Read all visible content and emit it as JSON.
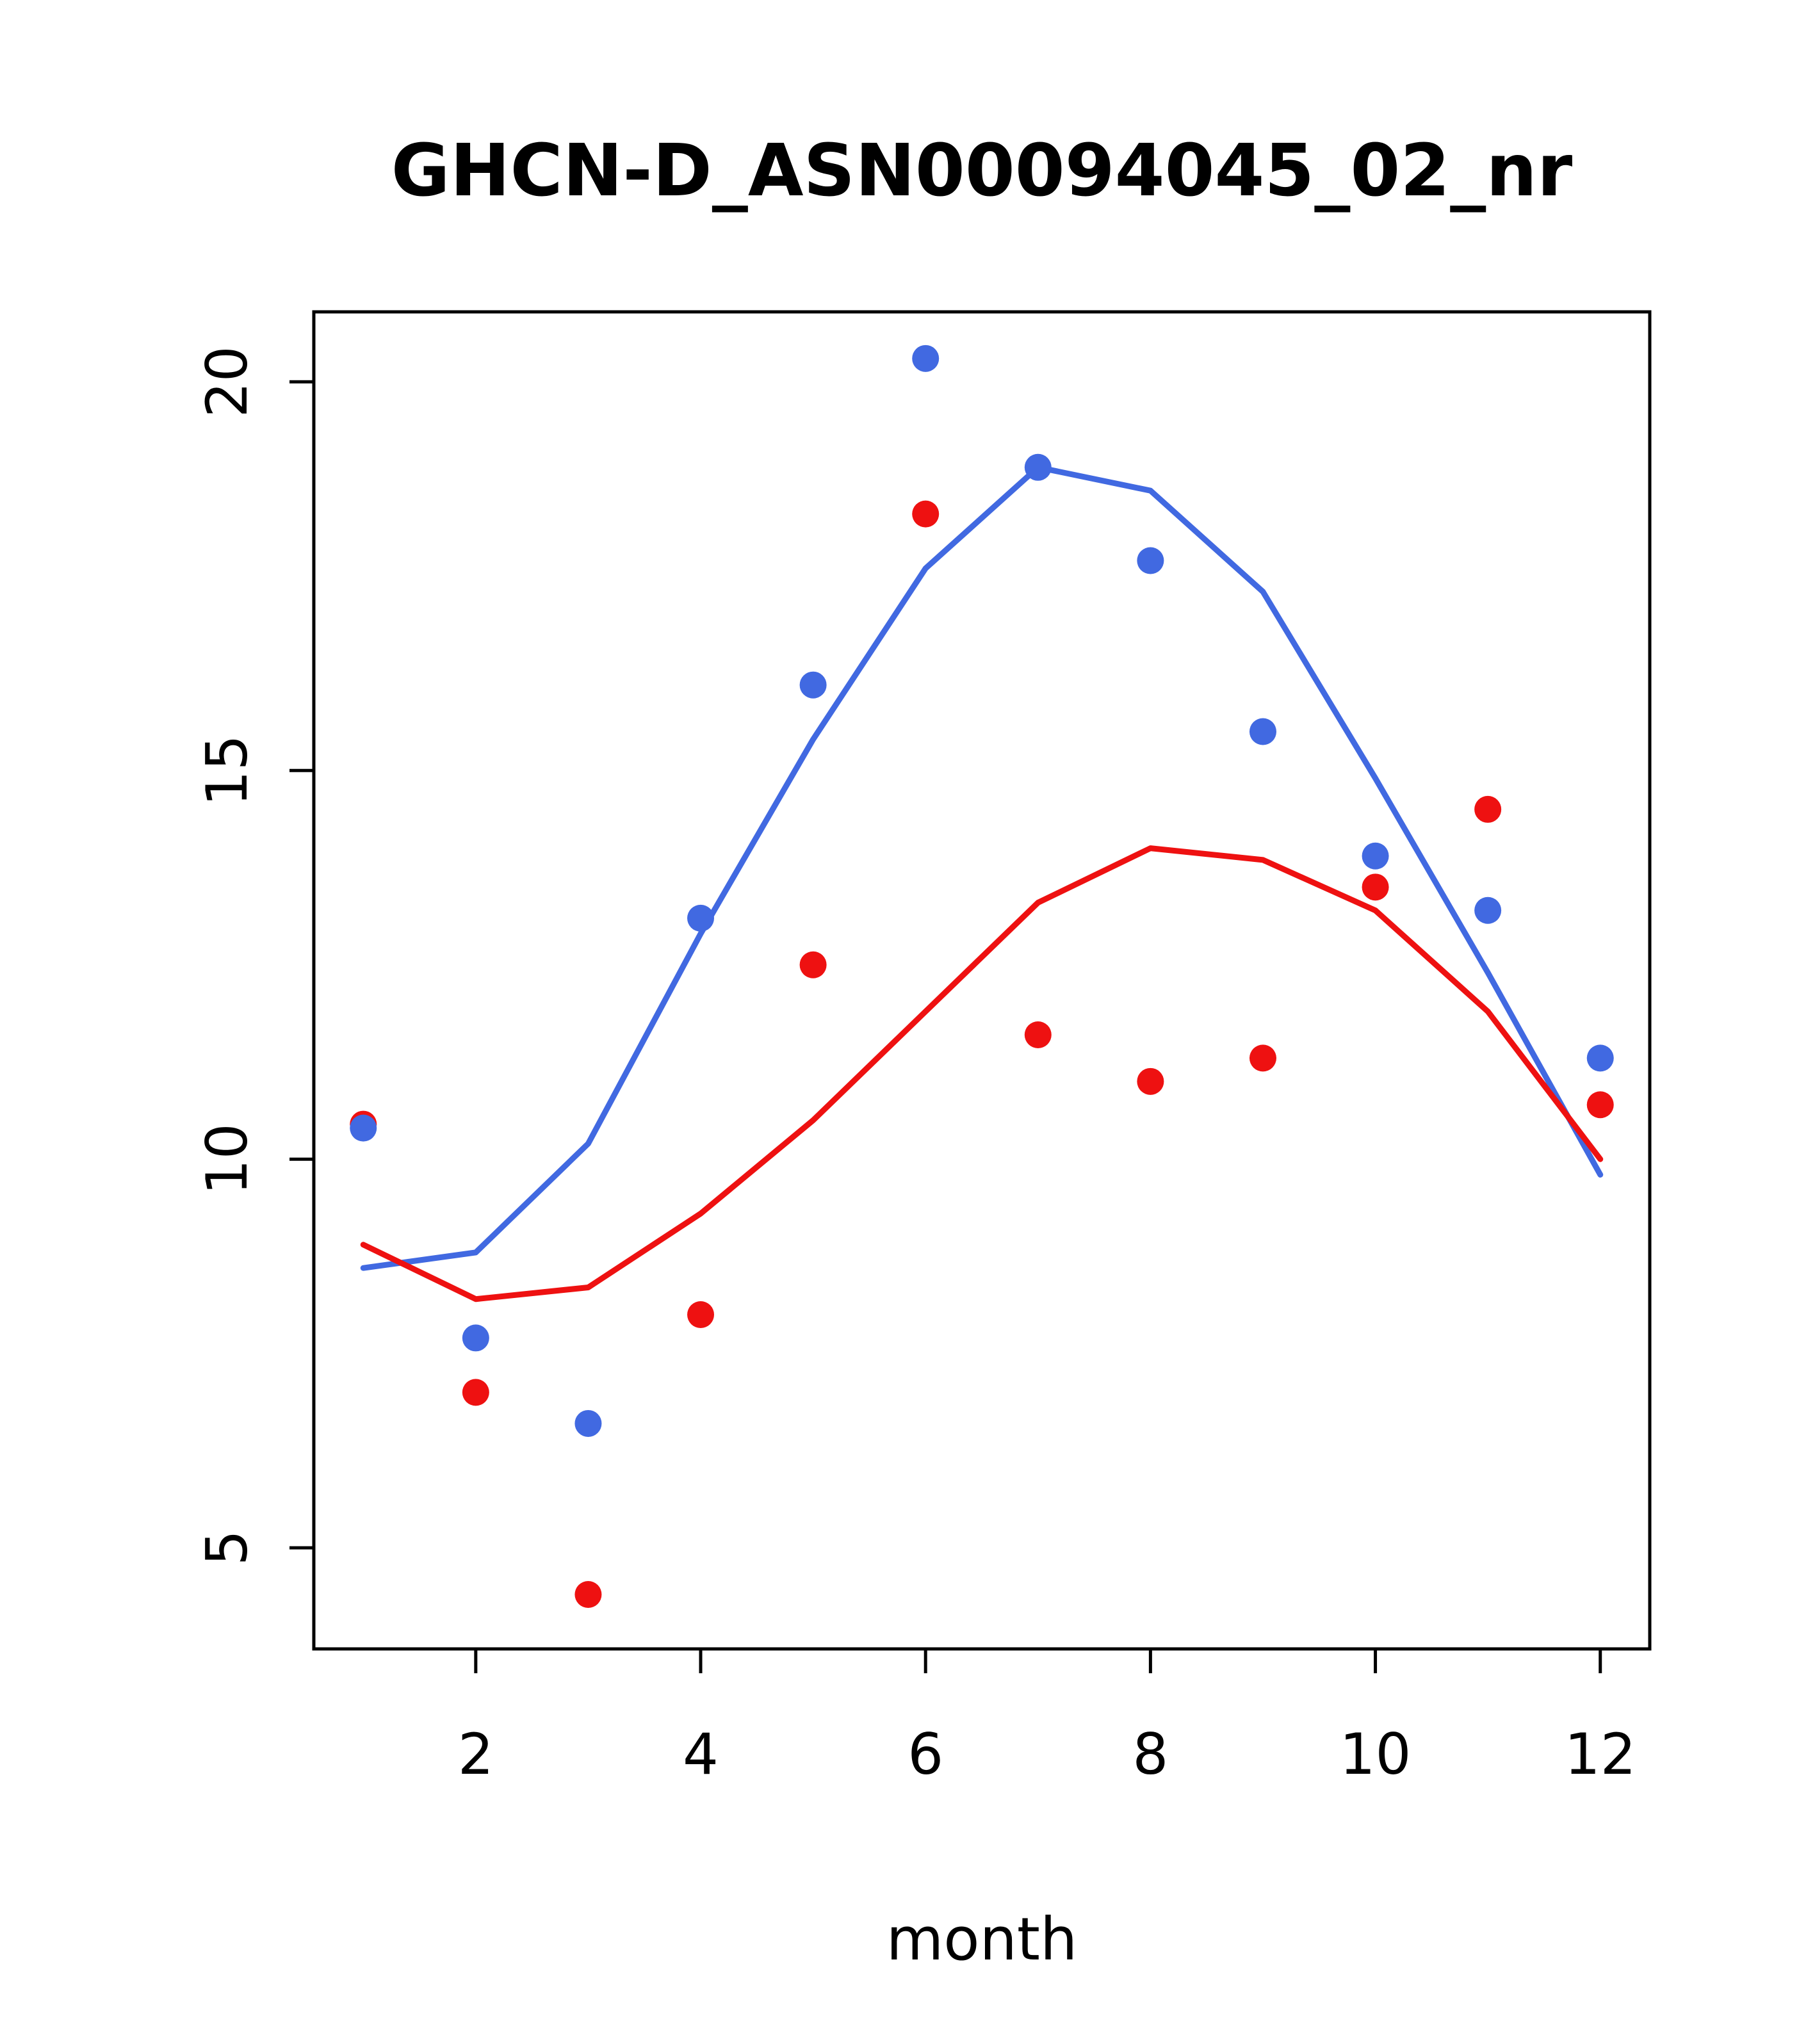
{
  "chart_data": {
    "type": "scatter",
    "title": "GHCN-D_ASN00094045_02_nr",
    "xlabel": "month",
    "ylabel": "",
    "x": [
      1,
      2,
      3,
      4,
      5,
      6,
      7,
      8,
      9,
      10,
      11,
      12
    ],
    "xlim": [
      0.56,
      12.44
    ],
    "ylim": [
      3.7,
      20.9
    ],
    "x_ticks": [
      2,
      4,
      6,
      8,
      10,
      12
    ],
    "y_ticks": [
      5,
      10,
      15,
      20
    ],
    "grid": false,
    "legend": "none",
    "colors": {
      "blue": "#4169E1",
      "red": "#EE1111",
      "axis": "#000000",
      "background": "#FFFFFF"
    },
    "series": [
      {
        "name": "blue-smooth-line",
        "kind": "line",
        "color": "#4169E1",
        "values": [
          8.6,
          8.8,
          10.2,
          12.9,
          15.4,
          17.6,
          18.9,
          18.6,
          17.3,
          14.9,
          12.4,
          9.8
        ]
      },
      {
        "name": "red-smooth-line",
        "kind": "line",
        "color": "#EE1111",
        "values": [
          8.9,
          8.2,
          8.35,
          9.3,
          10.5,
          11.9,
          13.3,
          14.0,
          13.85,
          13.2,
          11.9,
          10.0
        ]
      },
      {
        "name": "red-points",
        "kind": "points",
        "color": "#EE1111",
        "values": [
          10.45,
          7.0,
          4.4,
          8.0,
          12.5,
          18.3,
          11.6,
          11.0,
          11.3,
          13.5,
          14.5,
          10.7
        ]
      },
      {
        "name": "blue-points",
        "kind": "points",
        "color": "#4169E1",
        "values": [
          10.4,
          7.7,
          6.6,
          13.1,
          16.1,
          20.3,
          18.9,
          17.7,
          15.5,
          13.9,
          13.2,
          11.3
        ]
      }
    ]
  }
}
